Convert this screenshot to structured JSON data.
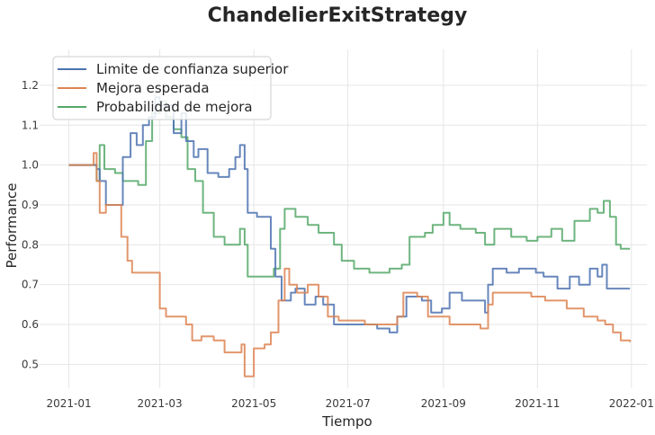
{
  "chart_data": {
    "type": "line",
    "title": "ChandelierExitStrategy",
    "xlabel": "Tiempo",
    "ylabel": "Performance",
    "xlim": [
      "2020-12-13",
      "2022-01-11"
    ],
    "ylim": [
      0.44,
      1.29
    ],
    "x_ticks": [
      "2021-01-01",
      "2021-03-01",
      "2021-05-01",
      "2021-07-01",
      "2021-09-01",
      "2021-11-01",
      "2022-01-01"
    ],
    "x_tick_labels": [
      "2021-01",
      "2021-03",
      "2021-05",
      "2021-07",
      "2021-09",
      "2021-11",
      "2022-01"
    ],
    "y_ticks": [
      0.5,
      0.6,
      0.7,
      0.8,
      0.9,
      1.0,
      1.1,
      1.2
    ],
    "y_tick_labels": [
      "0.5",
      "0.6",
      "0.7",
      "0.8",
      "0.9",
      "1.0",
      "1.1",
      "1.2"
    ],
    "grid": true,
    "legend_position": "top-left",
    "series": [
      {
        "name": "Limite de confianza superior",
        "color": "#4c72b0",
        "points": [
          [
            "2021-01-01",
            1.0
          ],
          [
            "2021-01-17",
            1.0
          ],
          [
            "2021-01-19",
            0.99
          ],
          [
            "2021-01-21",
            0.96
          ],
          [
            "2021-01-25",
            0.9
          ],
          [
            "2021-02-02",
            0.9
          ],
          [
            "2021-02-05",
            1.02
          ],
          [
            "2021-02-10",
            1.08
          ],
          [
            "2021-02-14",
            1.05
          ],
          [
            "2021-02-18",
            1.1
          ],
          [
            "2021-02-22",
            1.12
          ],
          [
            "2021-02-26",
            1.17
          ],
          [
            "2021-03-01",
            1.15
          ],
          [
            "2021-03-05",
            1.15
          ],
          [
            "2021-03-10",
            1.08
          ],
          [
            "2021-03-15",
            1.13
          ],
          [
            "2021-03-18",
            1.06
          ],
          [
            "2021-03-23",
            1.02
          ],
          [
            "2021-03-26",
            1.04
          ],
          [
            "2021-04-01",
            0.98
          ],
          [
            "2021-04-08",
            0.97
          ],
          [
            "2021-04-15",
            0.99
          ],
          [
            "2021-04-19",
            1.02
          ],
          [
            "2021-04-22",
            1.05
          ],
          [
            "2021-04-25",
            0.99
          ],
          [
            "2021-04-27",
            0.88
          ],
          [
            "2021-05-03",
            0.87
          ],
          [
            "2021-05-10",
            0.87
          ],
          [
            "2021-05-12",
            0.79
          ],
          [
            "2021-05-15",
            0.72
          ],
          [
            "2021-05-19",
            0.66
          ],
          [
            "2021-05-25",
            0.68
          ],
          [
            "2021-05-28",
            0.69
          ],
          [
            "2021-06-03",
            0.65
          ],
          [
            "2021-06-10",
            0.67
          ],
          [
            "2021-06-15",
            0.65
          ],
          [
            "2021-06-22",
            0.6
          ],
          [
            "2021-07-05",
            0.6
          ],
          [
            "2021-07-20",
            0.59
          ],
          [
            "2021-07-28",
            0.58
          ],
          [
            "2021-08-02",
            0.62
          ],
          [
            "2021-08-08",
            0.67
          ],
          [
            "2021-08-18",
            0.66
          ],
          [
            "2021-08-24",
            0.63
          ],
          [
            "2021-08-31",
            0.64
          ],
          [
            "2021-09-05",
            0.68
          ],
          [
            "2021-09-13",
            0.66
          ],
          [
            "2021-09-20",
            0.66
          ],
          [
            "2021-09-28",
            0.63
          ],
          [
            "2021-09-30",
            0.7
          ],
          [
            "2021-10-03",
            0.74
          ],
          [
            "2021-10-12",
            0.73
          ],
          [
            "2021-10-20",
            0.74
          ],
          [
            "2021-10-31",
            0.73
          ],
          [
            "2021-11-05",
            0.72
          ],
          [
            "2021-11-14",
            0.69
          ],
          [
            "2021-11-22",
            0.72
          ],
          [
            "2021-11-28",
            0.7
          ],
          [
            "2021-12-05",
            0.74
          ],
          [
            "2021-12-10",
            0.72
          ],
          [
            "2021-12-13",
            0.75
          ],
          [
            "2021-12-16",
            0.69
          ],
          [
            "2021-12-31",
            0.69
          ]
        ]
      },
      {
        "name": "Mejora esperada",
        "color": "#dd8452",
        "points": [
          [
            "2021-01-01",
            1.0
          ],
          [
            "2021-01-15",
            1.0
          ],
          [
            "2021-01-17",
            1.03
          ],
          [
            "2021-01-19",
            0.96
          ],
          [
            "2021-01-21",
            0.88
          ],
          [
            "2021-01-25",
            0.9
          ],
          [
            "2021-02-02",
            0.9
          ],
          [
            "2021-02-04",
            0.82
          ],
          [
            "2021-02-08",
            0.76
          ],
          [
            "2021-02-11",
            0.73
          ],
          [
            "2021-02-28",
            0.73
          ],
          [
            "2021-03-01",
            0.64
          ],
          [
            "2021-03-05",
            0.62
          ],
          [
            "2021-03-12",
            0.62
          ],
          [
            "2021-03-18",
            0.6
          ],
          [
            "2021-03-22",
            0.56
          ],
          [
            "2021-03-28",
            0.57
          ],
          [
            "2021-04-05",
            0.56
          ],
          [
            "2021-04-12",
            0.53
          ],
          [
            "2021-04-20",
            0.53
          ],
          [
            "2021-04-23",
            0.55
          ],
          [
            "2021-04-25",
            0.47
          ],
          [
            "2021-04-29",
            0.47
          ],
          [
            "2021-05-01",
            0.54
          ],
          [
            "2021-05-08",
            0.55
          ],
          [
            "2021-05-12",
            0.58
          ],
          [
            "2021-05-17",
            0.66
          ],
          [
            "2021-05-21",
            0.74
          ],
          [
            "2021-05-24",
            0.7
          ],
          [
            "2021-05-29",
            0.68
          ],
          [
            "2021-06-05",
            0.7
          ],
          [
            "2021-06-12",
            0.67
          ],
          [
            "2021-06-18",
            0.62
          ],
          [
            "2021-06-25",
            0.61
          ],
          [
            "2021-07-05",
            0.61
          ],
          [
            "2021-07-12",
            0.6
          ],
          [
            "2021-07-25",
            0.6
          ],
          [
            "2021-08-02",
            0.62
          ],
          [
            "2021-08-06",
            0.68
          ],
          [
            "2021-08-15",
            0.67
          ],
          [
            "2021-08-22",
            0.62
          ],
          [
            "2021-09-05",
            0.6
          ],
          [
            "2021-09-15",
            0.6
          ],
          [
            "2021-09-25",
            0.59
          ],
          [
            "2021-09-30",
            0.65
          ],
          [
            "2021-10-03",
            0.68
          ],
          [
            "2021-10-15",
            0.68
          ],
          [
            "2021-10-28",
            0.67
          ],
          [
            "2021-11-06",
            0.66
          ],
          [
            "2021-11-20",
            0.64
          ],
          [
            "2021-12-01",
            0.62
          ],
          [
            "2021-12-10",
            0.61
          ],
          [
            "2021-12-15",
            0.6
          ],
          [
            "2021-12-20",
            0.58
          ],
          [
            "2021-12-25",
            0.56
          ],
          [
            "2021-12-31",
            0.556
          ]
        ]
      },
      {
        "name": "Probabilidad de mejora",
        "color": "#55a868",
        "points": [
          [
            "2021-01-01",
            1.0
          ],
          [
            "2021-01-17",
            1.0
          ],
          [
            "2021-01-19",
            0.96
          ],
          [
            "2021-01-21",
            1.05
          ],
          [
            "2021-01-24",
            0.99
          ],
          [
            "2021-01-31",
            0.98
          ],
          [
            "2021-02-05",
            0.96
          ],
          [
            "2021-02-15",
            0.95
          ],
          [
            "2021-02-20",
            1.06
          ],
          [
            "2021-02-24",
            1.13
          ],
          [
            "2021-03-01",
            1.16
          ],
          [
            "2021-03-05",
            1.12
          ],
          [
            "2021-03-10",
            1.09
          ],
          [
            "2021-03-15",
            1.07
          ],
          [
            "2021-03-19",
            0.99
          ],
          [
            "2021-03-24",
            0.96
          ],
          [
            "2021-03-29",
            0.88
          ],
          [
            "2021-04-05",
            0.82
          ],
          [
            "2021-04-12",
            0.8
          ],
          [
            "2021-04-18",
            0.8
          ],
          [
            "2021-04-22",
            0.84
          ],
          [
            "2021-04-25",
            0.8
          ],
          [
            "2021-04-27",
            0.72
          ],
          [
            "2021-05-10",
            0.72
          ],
          [
            "2021-05-14",
            0.74
          ],
          [
            "2021-05-18",
            0.84
          ],
          [
            "2021-05-21",
            0.89
          ],
          [
            "2021-05-28",
            0.87
          ],
          [
            "2021-06-05",
            0.85
          ],
          [
            "2021-06-12",
            0.83
          ],
          [
            "2021-06-22",
            0.8
          ],
          [
            "2021-06-27",
            0.76
          ],
          [
            "2021-07-05",
            0.74
          ],
          [
            "2021-07-15",
            0.73
          ],
          [
            "2021-07-22",
            0.73
          ],
          [
            "2021-07-28",
            0.74
          ],
          [
            "2021-08-05",
            0.75
          ],
          [
            "2021-08-10",
            0.82
          ],
          [
            "2021-08-20",
            0.83
          ],
          [
            "2021-08-25",
            0.85
          ],
          [
            "2021-09-01",
            0.88
          ],
          [
            "2021-09-05",
            0.85
          ],
          [
            "2021-09-12",
            0.84
          ],
          [
            "2021-09-22",
            0.83
          ],
          [
            "2021-09-28",
            0.8
          ],
          [
            "2021-10-04",
            0.84
          ],
          [
            "2021-10-15",
            0.82
          ],
          [
            "2021-10-25",
            0.81
          ],
          [
            "2021-11-01",
            0.82
          ],
          [
            "2021-11-10",
            0.84
          ],
          [
            "2021-11-17",
            0.81
          ],
          [
            "2021-11-25",
            0.86
          ],
          [
            "2021-12-05",
            0.89
          ],
          [
            "2021-12-10",
            0.88
          ],
          [
            "2021-12-14",
            0.91
          ],
          [
            "2021-12-18",
            0.87
          ],
          [
            "2021-12-22",
            0.8
          ],
          [
            "2021-12-25",
            0.79
          ],
          [
            "2021-12-31",
            0.79
          ]
        ]
      }
    ]
  }
}
